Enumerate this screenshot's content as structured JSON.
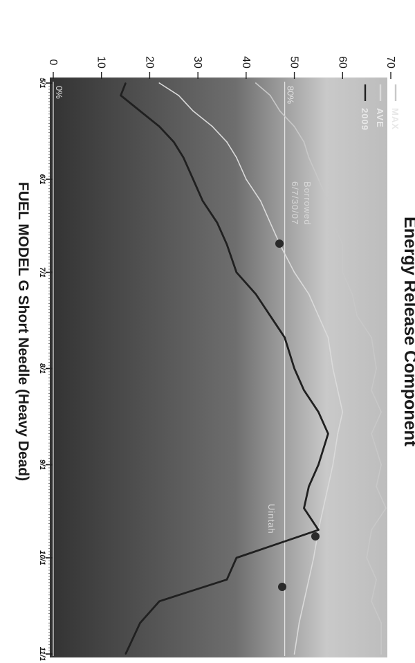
{
  "chart_data": {
    "type": "line",
    "title": "Energy Release Component",
    "xlabel": "FUEL MODEL G Short Needle (Heavy Dead)",
    "ylabel": "",
    "ylim": [
      0,
      70
    ],
    "y_ticks": [
      0,
      10,
      20,
      30,
      40,
      50,
      60,
      70
    ],
    "x_ticks": [
      "5/1",
      "6/1",
      "7/1",
      "8/1",
      "9/1",
      "10/1",
      "11/1"
    ],
    "grid": false,
    "legend_position": "top-left",
    "percentile_lines": [
      {
        "label": "0%",
        "value": 0
      },
      {
        "label": "80%",
        "value": 48
      }
    ],
    "annotations": [
      "Borrowed",
      "6/7/30/07",
      "Uintah"
    ],
    "series": [
      {
        "name": "MAX",
        "color": "#c8c8c8",
        "x": [
          "5/1",
          "5/5",
          "5/10",
          "5/15",
          "5/20",
          "5/25",
          "6/1",
          "6/8",
          "6/15",
          "6/22",
          "7/1",
          "7/8",
          "7/15",
          "7/22",
          "8/1",
          "8/8",
          "8/15",
          "8/22",
          "9/1",
          "9/8",
          "9/15",
          "9/22",
          "10/1",
          "10/8",
          "10/15",
          "10/22",
          "11/1"
        ],
        "values": [
          42,
          45,
          47,
          50,
          52,
          53,
          55,
          57,
          58,
          60,
          60,
          62,
          63,
          66,
          67,
          66,
          68,
          66,
          68,
          67,
          69,
          66,
          65,
          67,
          66,
          68,
          68
        ]
      },
      {
        "name": "AVE",
        "color": "#dadada",
        "x": [
          "5/1",
          "5/5",
          "5/10",
          "5/15",
          "5/20",
          "5/25",
          "6/1",
          "6/8",
          "6/15",
          "6/22",
          "7/1",
          "7/8",
          "7/15",
          "7/22",
          "8/1",
          "8/8",
          "8/15",
          "8/22",
          "9/1",
          "9/8",
          "9/15",
          "9/22",
          "10/1",
          "10/8",
          "10/15",
          "10/22",
          "11/1"
        ],
        "values": [
          22,
          26,
          29,
          33,
          36,
          38,
          40,
          43,
          45,
          47,
          50,
          53,
          55,
          57,
          58,
          59,
          60,
          59,
          58,
          57,
          56,
          55,
          54,
          53,
          52,
          51,
          50
        ]
      },
      {
        "name": "2009",
        "color": "#202020",
        "x": [
          "5/1",
          "5/5",
          "5/10",
          "5/15",
          "5/20",
          "5/25",
          "6/1",
          "6/8",
          "6/15",
          "6/22",
          "7/1",
          "7/8",
          "7/15",
          "7/22",
          "8/1",
          "8/8",
          "8/15",
          "8/22",
          "9/1",
          "9/8",
          "9/15",
          "9/22",
          "10/1",
          "10/8",
          "10/15",
          "10/22",
          "11/1"
        ],
        "values": [
          15,
          14,
          18,
          22,
          25,
          27,
          29,
          31,
          34,
          36,
          38,
          42,
          45,
          48,
          50,
          52,
          55,
          57,
          55,
          53,
          52,
          55,
          38,
          36,
          22,
          18,
          15
        ]
      }
    ]
  }
}
